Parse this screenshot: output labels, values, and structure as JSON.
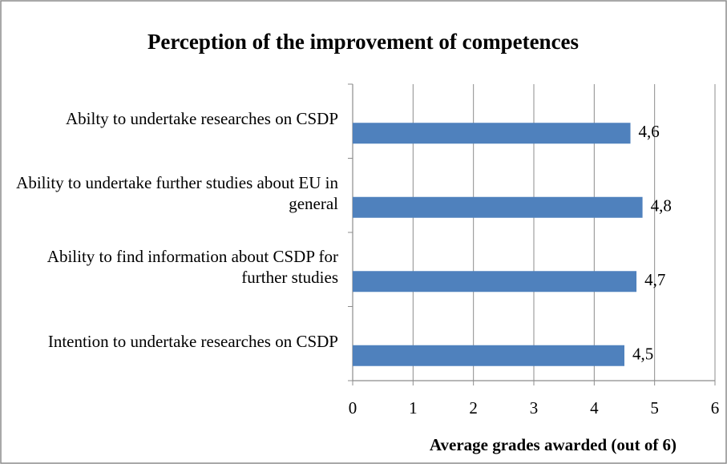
{
  "chart_data": {
    "type": "bar",
    "orientation": "horizontal",
    "title": "Perception of the improvement of competences",
    "x_label": "Average grades awarded (out of 6)",
    "categories": [
      "Abilty to undertake researches on CSDP",
      "Ability to undertake further studies about EU in general",
      "Ability to find information about CSDP for further studies",
      "Intention to undertake researches on CSDP"
    ],
    "values": [
      4.6,
      4.8,
      4.7,
      4.5
    ],
    "value_labels": [
      "4,6",
      "4,8",
      "4,7",
      "4,5"
    ],
    "color": "#4f81bd",
    "xlim": [
      0,
      6
    ],
    "xticks": [
      0,
      1,
      2,
      3,
      4,
      5,
      6
    ],
    "grid": true
  }
}
